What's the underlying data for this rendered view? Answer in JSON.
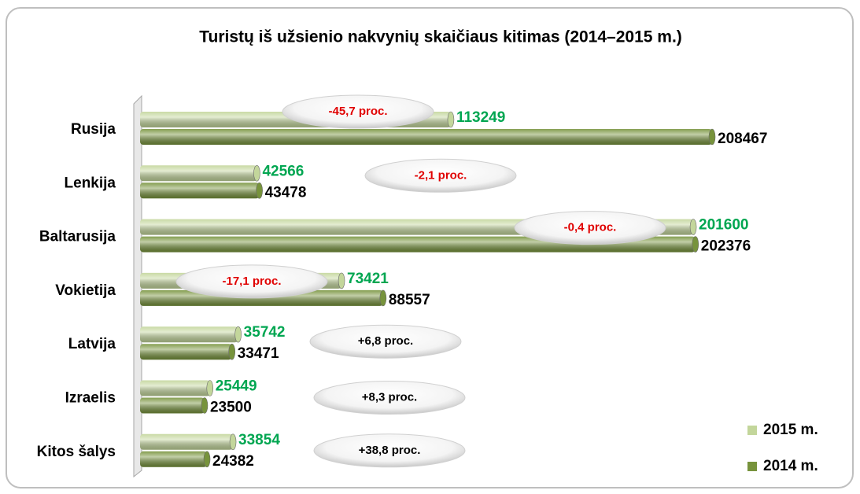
{
  "chart_data": {
    "type": "bar",
    "orientation": "horizontal",
    "title": "Turistų iš užsienio nakvynių skaičiaus kitimas (2014–2015 m.)",
    "categories": [
      "Rusija",
      "Lenkija",
      "Baltarusija",
      "Vokietija",
      "Latvija",
      "Izraelis",
      "Kitos šalys"
    ],
    "series": [
      {
        "name": "2015 m.",
        "color": "#c3d69b",
        "label_color": "#00a651",
        "values": [
          113249,
          42566,
          201600,
          73421,
          35742,
          25449,
          33854
        ]
      },
      {
        "name": "2014 m.",
        "color": "#77933c",
        "label_color": "#000000",
        "values": [
          208467,
          43478,
          202376,
          88557,
          33471,
          23500,
          24382
        ]
      }
    ],
    "annotations": [
      {
        "text": "-45,7 proc.",
        "color": "#e00000"
      },
      {
        "text": "-2,1 proc.",
        "color": "#e00000"
      },
      {
        "text": "-0,4 proc.",
        "color": "#e00000"
      },
      {
        "text": "-17,1 proc.",
        "color": "#e00000"
      },
      {
        "text": "+6,8 proc.",
        "color": "#000000"
      },
      {
        "text": "+8,3 proc.",
        "color": "#000000"
      },
      {
        "text": "+38,8 proc.",
        "color": "#000000"
      }
    ],
    "legend": "lower right"
  }
}
